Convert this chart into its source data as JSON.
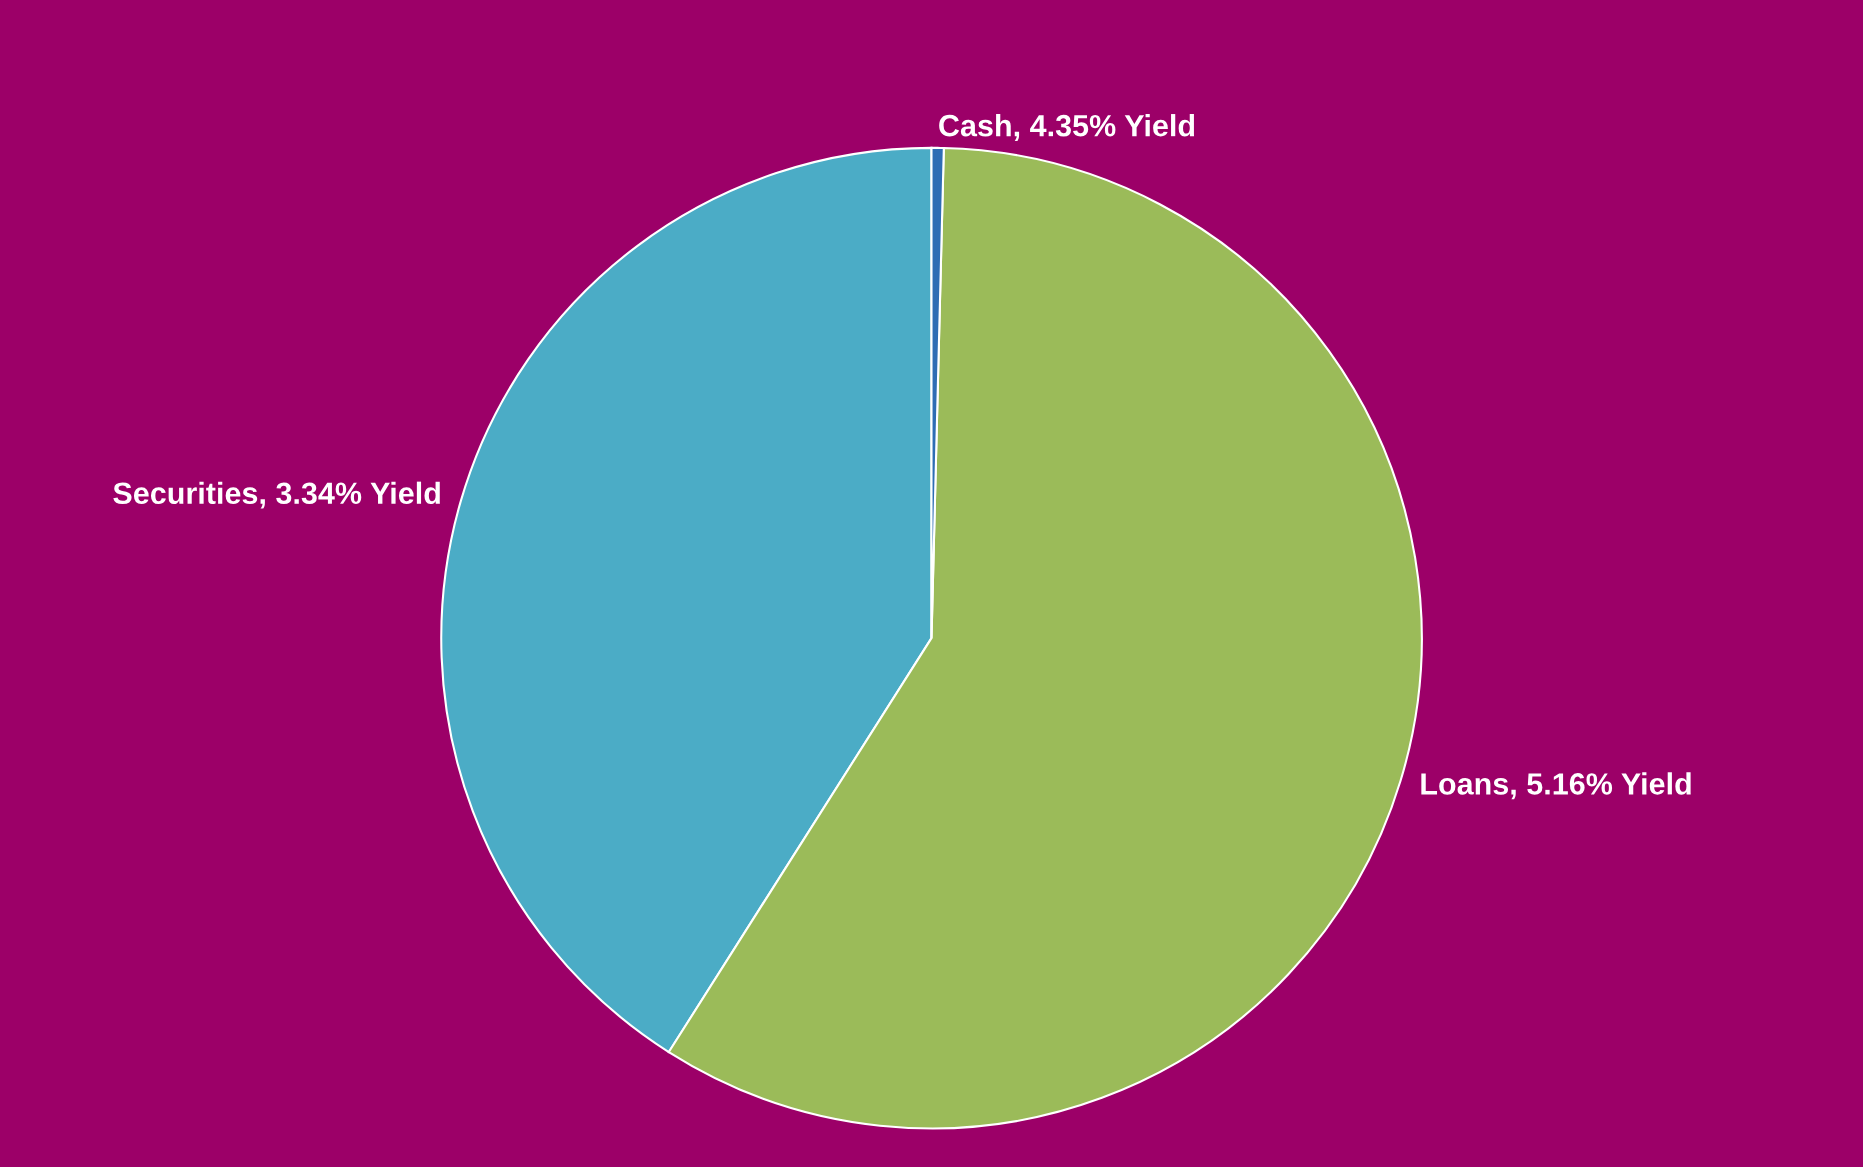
{
  "chart_data": {
    "type": "pie",
    "categories": [
      "Cash, 4.35% Yield",
      "Loans, 5.16% Yield",
      "Securities, 3.34% Yield"
    ],
    "values": [
      0.4,
      58.6,
      41.0
    ],
    "colors": [
      "#2e6db4",
      "#9bbb59",
      "#4bacc6"
    ]
  }
}
